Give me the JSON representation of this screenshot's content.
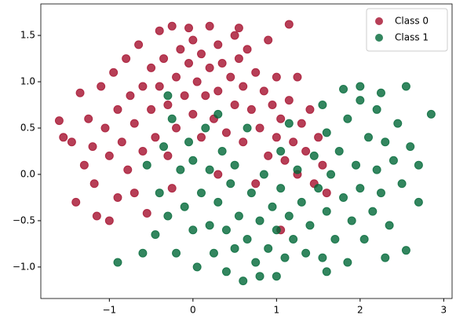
{
  "chart_data": {
    "type": "scatter",
    "xlim": [
      -1.82,
      3.1
    ],
    "ylim": [
      -1.34,
      1.84
    ],
    "xticks": [
      {
        "value": -1,
        "label": "−1"
      },
      0,
      1,
      2,
      3
    ],
    "yticks": [
      {
        "value": -1,
        "label": "−1.0"
      },
      {
        "value": -0.5,
        "label": "−0.5"
      },
      {
        "value": 0,
        "label": "0.0"
      },
      0.5,
      {
        "value": 1,
        "label": "1.0"
      },
      1.5
    ],
    "legend": "upper right",
    "series": [
      {
        "name": "Class 0",
        "color": "#a50f2d",
        "x": [
          -1.6,
          -1.55,
          -1.45,
          -1.4,
          -1.35,
          -1.3,
          -1.25,
          -1.2,
          -1.18,
          -1.1,
          -1.05,
          -1.0,
          -1.0,
          -0.95,
          -0.9,
          -0.9,
          -0.85,
          -0.8,
          -0.78,
          -0.75,
          -0.7,
          -0.7,
          -0.65,
          -0.6,
          -0.6,
          -0.55,
          -0.5,
          -0.5,
          -0.45,
          -0.4,
          -0.4,
          -0.35,
          -0.3,
          -0.3,
          -0.25,
          -0.2,
          -0.2,
          -0.15,
          -0.1,
          -0.05,
          0.0,
          0.0,
          0.05,
          0.1,
          0.1,
          0.15,
          0.2,
          0.2,
          0.25,
          0.3,
          0.3,
          0.35,
          0.4,
          0.45,
          0.5,
          0.5,
          0.55,
          0.6,
          0.6,
          0.65,
          0.7,
          0.75,
          0.8,
          0.85,
          0.9,
          0.9,
          0.95,
          1.0,
          1.0,
          1.05,
          1.1,
          1.15,
          1.15,
          1.2,
          1.25,
          1.3,
          1.35,
          1.4,
          1.45,
          1.5,
          1.55,
          1.6,
          1.05,
          0.75,
          0.3,
          -0.25,
          -1.15,
          0.55,
          -0.05,
          1.25
        ],
        "values": [
          0.58,
          0.4,
          0.35,
          -0.3,
          0.88,
          0.1,
          0.6,
          0.3,
          -0.1,
          0.95,
          0.5,
          -0.5,
          0.2,
          1.1,
          0.7,
          -0.25,
          0.35,
          1.25,
          0.05,
          0.85,
          0.55,
          -0.2,
          1.4,
          0.95,
          0.25,
          -0.42,
          1.15,
          0.7,
          0.4,
          1.55,
          0.95,
          1.25,
          0.75,
          0.2,
          1.6,
          1.05,
          0.5,
          1.35,
          0.85,
          1.2,
          1.45,
          0.65,
          1.0,
          1.3,
          0.4,
          0.85,
          1.6,
          1.15,
          0.6,
          1.4,
          0.9,
          1.2,
          0.45,
          1.05,
          1.5,
          0.75,
          1.25,
          0.95,
          0.35,
          1.35,
          0.7,
          1.1,
          0.5,
          0.9,
          1.45,
          0.2,
          0.75,
          1.05,
          0.4,
          0.6,
          0.15,
          1.62,
          0.8,
          0.35,
          0.0,
          0.55,
          0.25,
          0.7,
          -0.1,
          0.4,
          0.1,
          -0.2,
          -0.6,
          -0.1,
          0.0,
          -0.15,
          -0.45,
          1.58,
          1.58,
          1.05
        ]
      },
      {
        "name": "Class 1",
        "color": "#006837",
        "x": [
          -0.9,
          -0.6,
          -0.55,
          -0.45,
          -0.4,
          -0.35,
          -0.3,
          -0.25,
          -0.2,
          -0.15,
          -0.1,
          -0.05,
          0.0,
          0.0,
          0.05,
          0.1,
          0.15,
          0.2,
          0.2,
          0.25,
          0.3,
          0.35,
          0.4,
          0.4,
          0.45,
          0.5,
          0.5,
          0.55,
          0.6,
          0.65,
          0.7,
          0.75,
          0.8,
          0.85,
          0.9,
          0.95,
          1.0,
          1.0,
          1.05,
          1.1,
          1.15,
          1.2,
          1.25,
          1.3,
          1.35,
          1.4,
          1.45,
          1.5,
          1.55,
          1.6,
          1.6,
          1.65,
          1.7,
          1.75,
          1.8,
          1.85,
          1.85,
          1.9,
          1.95,
          2.0,
          2.0,
          2.05,
          2.1,
          2.15,
          2.2,
          2.2,
          2.25,
          2.3,
          2.35,
          2.4,
          2.45,
          2.5,
          2.55,
          2.55,
          2.6,
          2.7,
          2.85,
          2.0,
          1.55,
          1.8,
          2.25,
          1.15,
          0.65,
          -0.3,
          0.8,
          1.6,
          2.3,
          1.05,
          0.3,
          2.7
        ],
        "values": [
          -0.95,
          -0.85,
          0.1,
          -0.65,
          -0.2,
          0.3,
          -0.45,
          0.6,
          -0.85,
          0.05,
          -0.35,
          0.35,
          -0.6,
          0.15,
          -1.0,
          -0.2,
          0.5,
          -0.55,
          0.05,
          -0.85,
          -0.3,
          0.25,
          -1.05,
          -0.6,
          -0.1,
          -0.8,
          0.1,
          -0.45,
          -1.15,
          -0.7,
          -0.2,
          -0.95,
          -0.5,
          0.0,
          -0.8,
          -0.35,
          -1.1,
          -0.6,
          -0.15,
          -0.9,
          -0.45,
          -0.7,
          0.05,
          -0.3,
          -0.85,
          -0.55,
          0.2,
          -0.15,
          -0.9,
          -0.4,
          0.45,
          0.0,
          -0.7,
          0.25,
          -0.25,
          0.6,
          -0.95,
          -0.5,
          0.1,
          0.8,
          -0.15,
          -0.7,
          0.4,
          -0.4,
          0.7,
          0.05,
          -0.2,
          0.35,
          -0.55,
          0.15,
          0.55,
          -0.1,
          0.95,
          -0.82,
          0.3,
          0.1,
          0.65,
          0.95,
          0.75,
          0.92,
          0.88,
          0.55,
          0.5,
          0.85,
          -1.1,
          -1.05,
          -0.9,
          0.25,
          0.65,
          -0.3
        ]
      }
    ]
  }
}
